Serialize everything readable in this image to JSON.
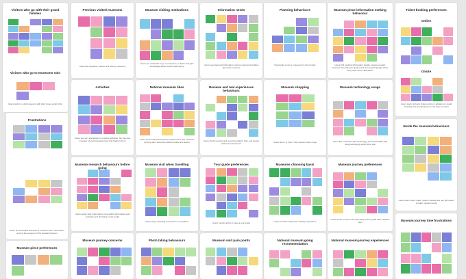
{
  "board": {
    "frames": [
      {
        "id": "visitors-family",
        "title": "Visitors who go with their grand families",
        "caption": "",
        "sub_title": "Visitors who go to museums solo",
        "sub_caption": "Users prefer to visit museums with their close social circle"
      },
      {
        "id": "frustrations",
        "title": "Frustrations",
        "caption": "",
        "sub_caption": "Users are frustrated with lack of curated route, information, and on the museum in the cultural museum"
      },
      {
        "id": "museum-piece-preferences",
        "title": "Museum piece preferences",
        "caption": ""
      },
      {
        "id": "previous-visited-museums",
        "title": "Previous visited museums",
        "caption": "Users like linguistic, culture and history museums"
      },
      {
        "id": "museum-visiting-motivations",
        "title": "Museum visiting motivations",
        "caption": "Users are motivated to go to museums, to learn and gain knowledge about culture and history"
      },
      {
        "id": "information-needs",
        "title": "Information needs",
        "caption": "Users need general information, leisure news and updates about the museum"
      },
      {
        "id": "planning-behaviours",
        "title": "Planning behaviours",
        "caption": "Users plan to go to museums in short notice"
      },
      {
        "id": "museum-piece-information-seeking",
        "title": "Museum piece information seeking behaviour",
        "caption": "Users find seeking information beside a piece enough; however they still look guides and do a search google when they need more information"
      },
      {
        "id": "ticket-booking-preferences",
        "title": "Ticket booking preferences",
        "online_label": "Online",
        "onsite_label": "Onsite",
        "caption": "Users prefer to book tickets online in advance to avoid traveling and spending time in the ticket counter"
      },
      {
        "id": "activities",
        "title": "Activities",
        "caption": "Users are very interested in museum activities, but they are unaware of events/experiences that happen there"
      },
      {
        "id": "national-museum-likes",
        "title": "National museum likes",
        "caption": "Users were impressed by their experience in the museum as they learn about the different halls and pieces"
      },
      {
        "id": "reviews-past-experiences",
        "title": "Reviews and real experiences behaviours",
        "caption": "Users check reviews and recommendation from real people with real experiences"
      },
      {
        "id": "museum-shopping",
        "title": "Museum shopping",
        "caption": "Users like to in now if the museum has a shop"
      },
      {
        "id": "museum-technology-usage",
        "title": "Museum technology usage",
        "caption": "Users like museums with technology and comfortable with using technology within their visit"
      },
      {
        "id": "inside-museum-behaviours",
        "title": "Inside the museum behaviours",
        "caption": "Users often check maps, search visuals and use QR codes to learn museum tools"
      },
      {
        "id": "museum-research-behaviours",
        "title": "Museum research behaviours before going",
        "caption": "Users prefer their information via googling information and websites and checking social media"
      },
      {
        "id": "museum-visit-travelling",
        "title": "Museum visit when travelling",
        "caption": "Users enjoy checking museums in new places"
      },
      {
        "id": "tour-guide-preferences",
        "title": "Tour guide preferences",
        "caption": "Users mostly prefer to have a tour guide"
      },
      {
        "id": "museums-choosing-basis",
        "title": "Museums choosing basis",
        "caption": "Users tend the impressive activity experience"
      },
      {
        "id": "museum-journey-preferences",
        "title": "Museum journey preferences",
        "caption": "Users prefer to have a smooth easy journey path with a flexible plan"
      },
      {
        "id": "museum-journey-concerns",
        "title": "Museum journey concerns",
        "caption": ""
      },
      {
        "id": "photo-taking-behaviours",
        "title": "Photo taking behaviours",
        "caption": ""
      },
      {
        "id": "museum-visit-pain-points",
        "title": "Museum visit pain points",
        "caption": ""
      },
      {
        "id": "national-museum-going-recommendation",
        "title": "National museum going recommendation",
        "caption": ""
      },
      {
        "id": "national-museum-journey-experiences",
        "title": "National museum journey experiences",
        "caption": ""
      },
      {
        "id": "journey-time-frustrations",
        "title": "Museum journey time frustrations",
        "caption": ""
      }
    ]
  },
  "colors": {
    "canvas": "#e7e7e7",
    "frame": "#ffffff",
    "sticky_palette": [
      "#7b7fd6",
      "#f3a2c6",
      "#9ad58f",
      "#7ec9e8",
      "#f6d97a",
      "#9b8ce0",
      "#3fae5d",
      "#f2b07c",
      "#c7c7c7",
      "#e76ea9",
      "#b6e3a8",
      "#8fb8f2"
    ]
  }
}
